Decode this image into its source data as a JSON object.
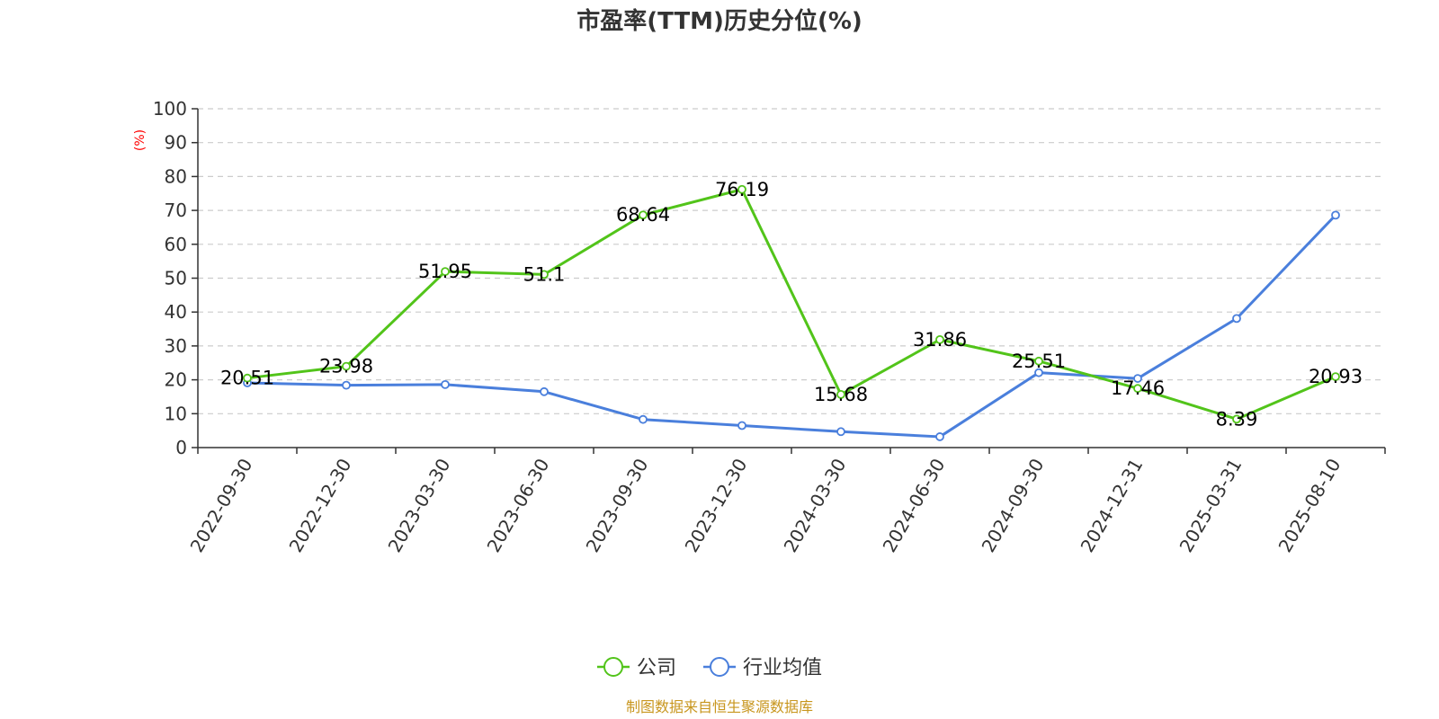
{
  "chart_data": {
    "type": "line",
    "title": "市盈率(TTM)历史分位(%)",
    "ylabel": "(%)",
    "ylim": [
      0,
      100
    ],
    "yticks": [
      0,
      10,
      20,
      30,
      40,
      50,
      60,
      70,
      80,
      90,
      100
    ],
    "grid": true,
    "legend_position": "bottom-center",
    "categories": [
      "2022-09-30",
      "2022-12-30",
      "2023-03-30",
      "2023-06-30",
      "2023-09-30",
      "2023-12-30",
      "2024-03-30",
      "2024-06-30",
      "2024-09-30",
      "2024-12-31",
      "2025-03-31",
      "2025-08-10"
    ],
    "series": [
      {
        "name": "公司",
        "color": "#52c41a",
        "values": [
          20.51,
          23.98,
          51.95,
          51.1,
          68.64,
          76.19,
          15.68,
          31.86,
          25.51,
          17.46,
          8.39,
          20.93
        ],
        "labels": [
          "20.51",
          "23.98",
          "51.95",
          "51.1",
          "68.64",
          "76.19",
          "15.68",
          "31.86",
          "25.51",
          "17.46",
          "8.39",
          "20.93"
        ]
      },
      {
        "name": "行业均值",
        "color": "#4a7fdc",
        "values": [
          19.1,
          18.4,
          18.6,
          16.5,
          8.3,
          6.5,
          4.7,
          3.2,
          22.1,
          20.4,
          38.1,
          68.6
        ]
      }
    ],
    "source": "制图数据来自恒生聚源数据库"
  }
}
